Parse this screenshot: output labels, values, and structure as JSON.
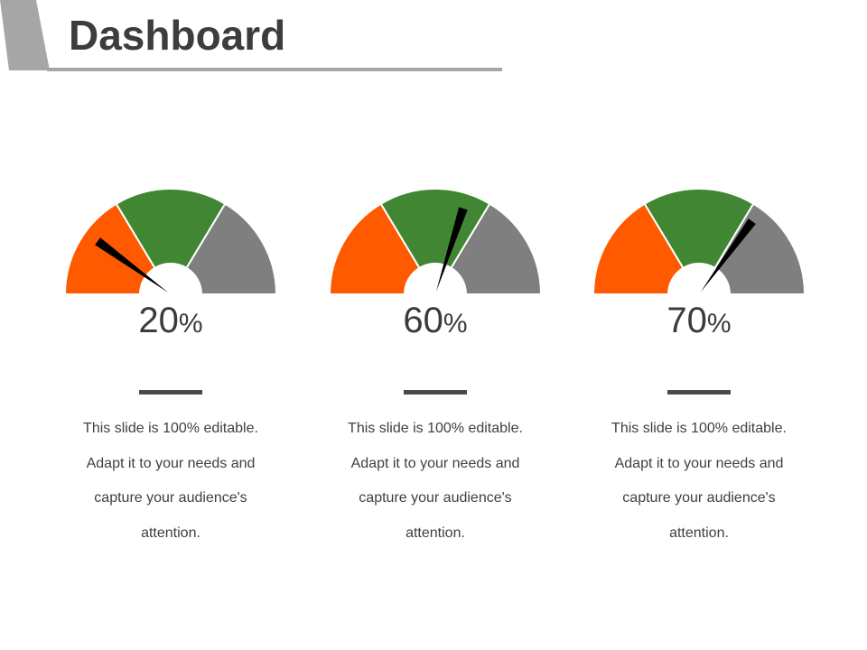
{
  "page": {
    "title": "Dashboard"
  },
  "colors": {
    "low": "#ff5a00",
    "mid": "#418733",
    "high": "#7f7f7f",
    "needle": "#000000",
    "title": "#3d3d3d",
    "tab": "#a6a6a6"
  },
  "gauges": [
    {
      "value": 20,
      "value_text": "20",
      "unit": "%",
      "caption_lines": [
        "This slide is 100% editable.",
        "Adapt it to your needs and",
        "capture your audience's",
        "attention."
      ]
    },
    {
      "value": 60,
      "value_text": "60",
      "unit": "%",
      "caption_lines": [
        "This slide is 100% editable.",
        "Adapt it to your needs and",
        "capture your audience's",
        "attention."
      ]
    },
    {
      "value": 70,
      "value_text": "70",
      "unit": "%",
      "caption_lines": [
        "This slide is 100% editable.",
        "Adapt it to your needs and",
        "capture your audience's",
        "attention."
      ]
    }
  ]
}
